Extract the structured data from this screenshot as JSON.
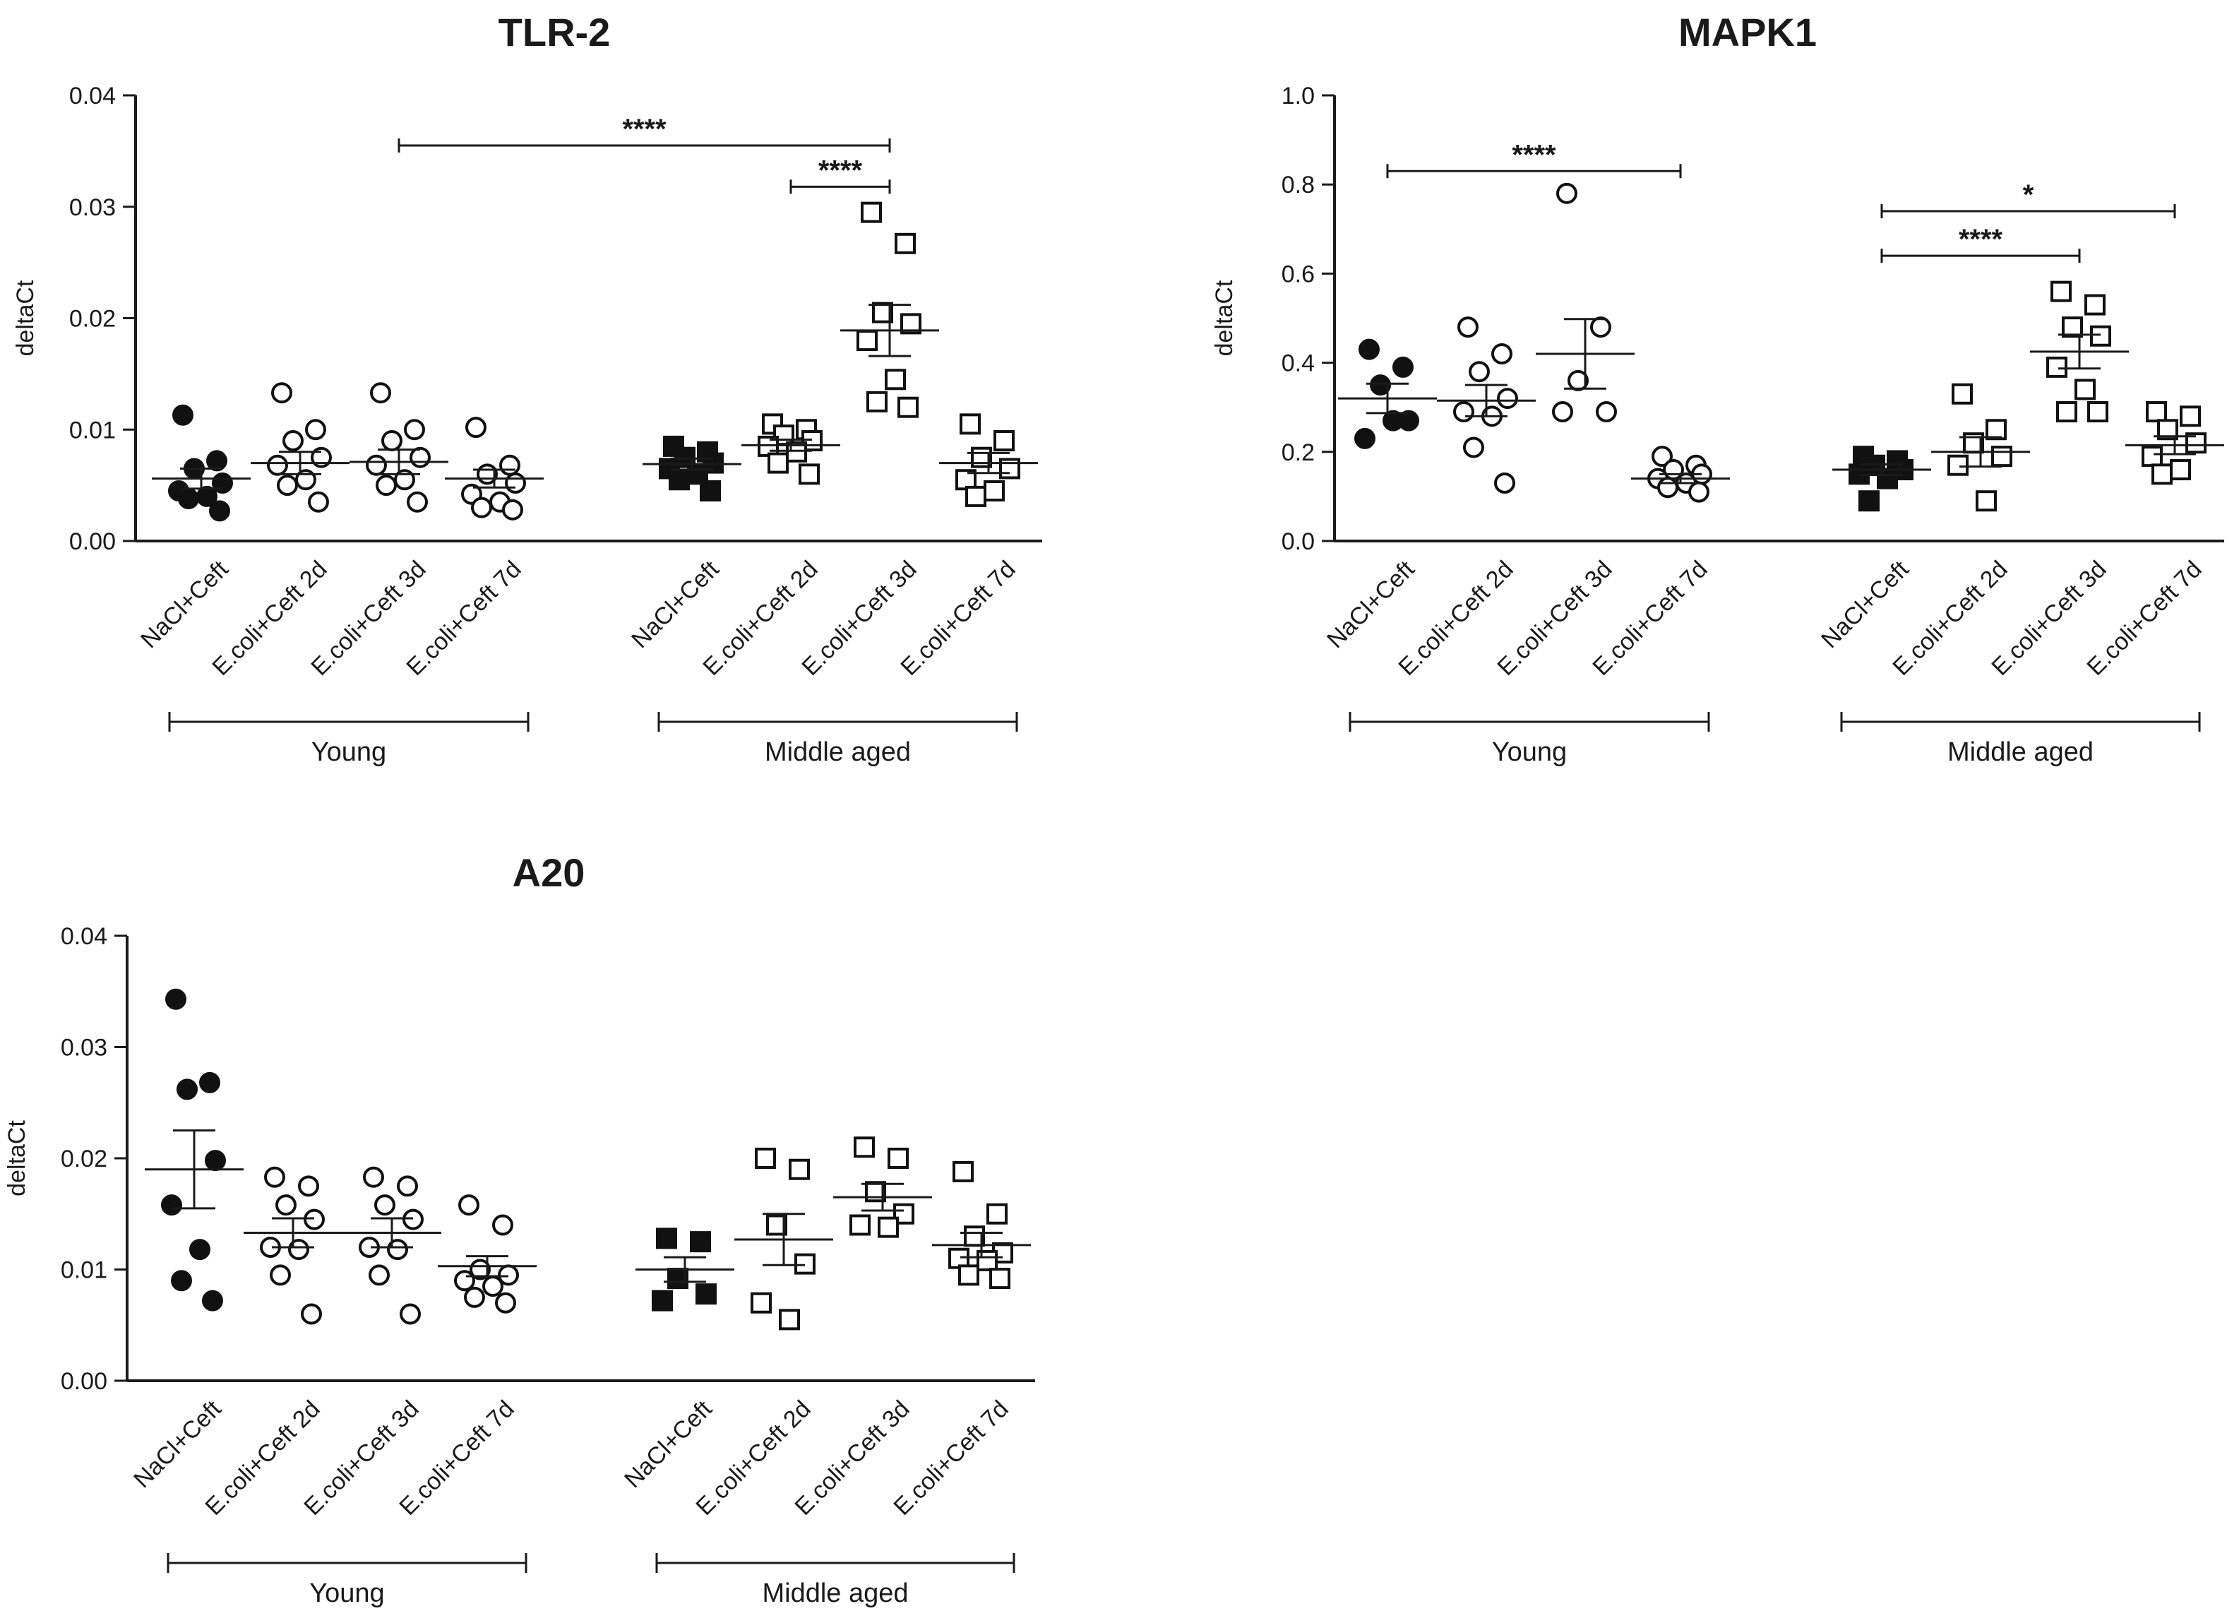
{
  "chart_data": [
    {
      "type": "scatter",
      "title": "TLR-2",
      "ylabel": "deltaCt",
      "ylim": [
        0,
        0.04
      ],
      "yticks": [
        0,
        0.01,
        0.02,
        0.03,
        0.04
      ],
      "ytick_labels": [
        "0.00",
        "0.01",
        "0.02",
        "0.03",
        "0.04"
      ],
      "categories": [
        "NaCl+Ceft",
        "E.coli+Ceft 2d",
        "E.coli+Ceft 3d",
        "E.coli+Ceft 7d",
        "NaCl+Ceft",
        "E.coli+Ceft 2d",
        "E.coli+Ceft 3d",
        "E.coli+Ceft 7d"
      ],
      "groups": [
        {
          "label": "Young",
          "from": 0,
          "to": 3
        },
        {
          "label": "Middle aged",
          "from": 4,
          "to": 7
        }
      ],
      "series": [
        {
          "name": "NaCl+Ceft",
          "group": "Young",
          "marker": "circle-filled",
          "values": [
            0.0113,
            0.0072,
            0.0065,
            0.0052,
            0.0045,
            0.004,
            0.0038,
            0.0027
          ],
          "mean": 0.0056,
          "sem": 0.0009
        },
        {
          "name": "E.coli+Ceft 2d",
          "group": "Young",
          "marker": "circle-open",
          "values": [
            0.0133,
            0.01,
            0.009,
            0.0075,
            0.0068,
            0.0055,
            0.005,
            0.0035
          ],
          "mean": 0.007,
          "sem": 0.001
        },
        {
          "name": "E.coli+Ceft 3d",
          "group": "Young",
          "marker": "circle-open",
          "values": [
            0.0133,
            0.01,
            0.009,
            0.0075,
            0.0068,
            0.0055,
            0.005,
            0.0035
          ],
          "mean": 0.0071,
          "sem": 0.0011
        },
        {
          "name": "E.coli+Ceft 7d",
          "group": "Young",
          "marker": "circle-open",
          "values": [
            0.0102,
            0.0068,
            0.006,
            0.0052,
            0.0042,
            0.0035,
            0.003,
            0.0028
          ],
          "mean": 0.0056,
          "sem": 0.0008
        },
        {
          "name": "NaCl+Ceft",
          "group": "Middle aged",
          "marker": "square-filled",
          "values": [
            0.0085,
            0.008,
            0.0075,
            0.007,
            0.0065,
            0.006,
            0.0055,
            0.0045
          ],
          "mean": 0.0069,
          "sem": 0.0005
        },
        {
          "name": "E.coli+Ceft 2d",
          "group": "Middle aged",
          "marker": "square-open",
          "values": [
            0.0105,
            0.01,
            0.0095,
            0.009,
            0.0085,
            0.008,
            0.007,
            0.006
          ],
          "mean": 0.0086,
          "sem": 0.0005
        },
        {
          "name": "E.coli+Ceft 3d",
          "group": "Middle aged",
          "marker": "square-open",
          "values": [
            0.0295,
            0.0267,
            0.0205,
            0.0195,
            0.018,
            0.0145,
            0.0125,
            0.012
          ],
          "mean": 0.0189,
          "sem": 0.0023
        },
        {
          "name": "E.coli+Ceft 7d",
          "group": "Middle aged",
          "marker": "square-open",
          "values": [
            0.0105,
            0.009,
            0.0075,
            0.0065,
            0.0055,
            0.0045,
            0.004
          ],
          "mean": 0.007,
          "sem": 0.0009
        }
      ],
      "significance": [
        {
          "from": 2,
          "to": 6,
          "y": 0.0355,
          "label": "****"
        },
        {
          "from": 5,
          "to": 6,
          "y": 0.0318,
          "label": "****"
        }
      ]
    },
    {
      "type": "scatter",
      "title": "MAPK1",
      "ylabel": "deltaCt",
      "ylim": [
        0,
        1.0
      ],
      "yticks": [
        0,
        0.2,
        0.4,
        0.6,
        0.8,
        1.0
      ],
      "ytick_labels": [
        "0.0",
        "0.2",
        "0.4",
        "0.6",
        "0.8",
        "1.0"
      ],
      "categories": [
        "NaCl+Ceft",
        "E.coli+Ceft 2d",
        "E.coli+Ceft 3d",
        "E.coli+Ceft 7d",
        "NaCl+Ceft",
        "E.coli+Ceft 2d",
        "E.coli+Ceft 3d",
        "E.coli+Ceft 7d"
      ],
      "groups": [
        {
          "label": "Young",
          "from": 0,
          "to": 3
        },
        {
          "label": "Middle aged",
          "from": 4,
          "to": 7
        }
      ],
      "series": [
        {
          "name": "NaCl+Ceft",
          "group": "Young",
          "marker": "circle-filled",
          "values": [
            0.43,
            0.39,
            0.35,
            0.27,
            0.23,
            0.27
          ],
          "mean": 0.32,
          "sem": 0.033
        },
        {
          "name": "E.coli+Ceft 2d",
          "group": "Young",
          "marker": "circle-open",
          "values": [
            0.48,
            0.42,
            0.38,
            0.32,
            0.29,
            0.28,
            0.21,
            0.13
          ],
          "mean": 0.315,
          "sem": 0.035
        },
        {
          "name": "E.coli+Ceft 3d",
          "group": "Young",
          "marker": "circle-open",
          "values": [
            0.78,
            0.48,
            0.36,
            0.29,
            0.29
          ],
          "mean": 0.42,
          "sem": 0.078
        },
        {
          "name": "E.coli+Ceft 7d",
          "group": "Young",
          "marker": "circle-open",
          "values": [
            0.19,
            0.17,
            0.16,
            0.15,
            0.14,
            0.13,
            0.12,
            0.11
          ],
          "mean": 0.14,
          "sem": 0.01
        },
        {
          "name": "NaCl+Ceft",
          "group": "Middle aged",
          "marker": "square-filled",
          "values": [
            0.19,
            0.18,
            0.17,
            0.16,
            0.15,
            0.14,
            0.09
          ],
          "mean": 0.16,
          "sem": 0.012
        },
        {
          "name": "E.coli+Ceft 2d",
          "group": "Middle aged",
          "marker": "square-open",
          "values": [
            0.33,
            0.25,
            0.22,
            0.19,
            0.17,
            0.09
          ],
          "mean": 0.2,
          "sem": 0.033
        },
        {
          "name": "E.coli+Ceft 3d",
          "group": "Middle aged",
          "marker": "square-open",
          "values": [
            0.56,
            0.53,
            0.48,
            0.46,
            0.39,
            0.34,
            0.29,
            0.29
          ],
          "mean": 0.425,
          "sem": 0.038
        },
        {
          "name": "E.coli+Ceft 7d",
          "group": "Middle aged",
          "marker": "square-open",
          "values": [
            0.29,
            0.28,
            0.25,
            0.22,
            0.19,
            0.16,
            0.15
          ],
          "mean": 0.215,
          "sem": 0.02
        }
      ],
      "significance": [
        {
          "from": 0,
          "to": 3,
          "y": 0.83,
          "label": "****"
        },
        {
          "from": 4,
          "to": 7,
          "y": 0.74,
          "label": "*"
        },
        {
          "from": 4,
          "to": 6,
          "y": 0.64,
          "label": "****"
        }
      ]
    },
    {
      "type": "scatter",
      "title": "A20",
      "ylabel": "deltaCt",
      "ylim": [
        0,
        0.04
      ],
      "yticks": [
        0,
        0.01,
        0.02,
        0.03,
        0.04
      ],
      "ytick_labels": [
        "0.00",
        "0.01",
        "0.02",
        "0.03",
        "0.04"
      ],
      "categories": [
        "NaCl+Ceft",
        "E.coli+Ceft 2d",
        "E.coli+Ceft 3d",
        "E.coli+Ceft 7d",
        "NaCl+Ceft",
        "E.coli+Ceft 2d",
        "E.coli+Ceft 3d",
        "E.coli+Ceft 7d"
      ],
      "groups": [
        {
          "label": "Young",
          "from": 0,
          "to": 3
        },
        {
          "label": "Middle aged",
          "from": 4,
          "to": 7
        }
      ],
      "series": [
        {
          "name": "NaCl+Ceft",
          "group": "Young",
          "marker": "circle-filled",
          "values": [
            0.0343,
            0.0268,
            0.0262,
            0.0198,
            0.0158,
            0.0118,
            0.009,
            0.0072
          ],
          "mean": 0.019,
          "sem": 0.0035
        },
        {
          "name": "E.coli+Ceft 2d",
          "group": "Young",
          "marker": "circle-open",
          "values": [
            0.0183,
            0.0175,
            0.0158,
            0.0145,
            0.012,
            0.0118,
            0.0095,
            0.006
          ],
          "mean": 0.0133,
          "sem": 0.0013
        },
        {
          "name": "E.coli+Ceft 3d",
          "group": "Young",
          "marker": "circle-open",
          "values": [
            0.0183,
            0.0175,
            0.0158,
            0.0145,
            0.012,
            0.0118,
            0.0095,
            0.006
          ],
          "mean": 0.0133,
          "sem": 0.0013
        },
        {
          "name": "E.coli+Ceft 7d",
          "group": "Young",
          "marker": "circle-open",
          "values": [
            0.0158,
            0.014,
            0.01,
            0.0095,
            0.009,
            0.0085,
            0.0075,
            0.007
          ],
          "mean": 0.0103,
          "sem": 0.0009
        },
        {
          "name": "NaCl+Ceft",
          "group": "Middle aged",
          "marker": "square-filled",
          "values": [
            0.0128,
            0.0125,
            0.0092,
            0.0078,
            0.0072
          ],
          "mean": 0.01,
          "sem": 0.0011
        },
        {
          "name": "E.coli+Ceft 2d",
          "group": "Middle aged",
          "marker": "square-open",
          "values": [
            0.02,
            0.019,
            0.014,
            0.0105,
            0.007,
            0.0055
          ],
          "mean": 0.0127,
          "sem": 0.0023
        },
        {
          "name": "E.coli+Ceft 3d",
          "group": "Middle aged",
          "marker": "square-open",
          "values": [
            0.021,
            0.02,
            0.017,
            0.015,
            0.014,
            0.0138
          ],
          "mean": 0.0165,
          "sem": 0.0012
        },
        {
          "name": "E.coli+Ceft 7d",
          "group": "Middle aged",
          "marker": "square-open",
          "values": [
            0.0188,
            0.015,
            0.013,
            0.0115,
            0.011,
            0.0108,
            0.0095,
            0.0092
          ],
          "mean": 0.0122,
          "sem": 0.0011
        }
      ],
      "significance": []
    }
  ]
}
